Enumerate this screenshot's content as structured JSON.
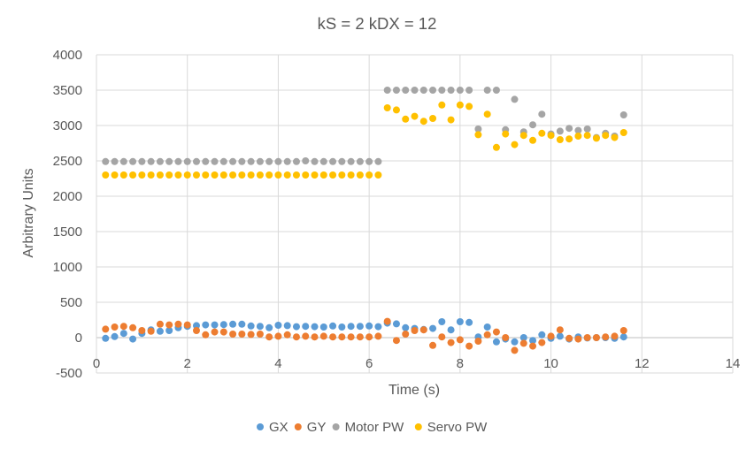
{
  "chart_data": {
    "type": "scatter",
    "title": "kS = 2 kDX = 12",
    "xlabel": "Time (s)",
    "ylabel": "Arbitrary Units",
    "xlim": [
      0,
      14
    ],
    "ylim": [
      -500,
      4000
    ],
    "x_ticks": [
      0,
      2,
      4,
      6,
      8,
      10,
      12,
      14
    ],
    "y_ticks": [
      -500,
      0,
      500,
      1000,
      1500,
      2000,
      2500,
      3000,
      3500,
      4000
    ],
    "x_tick_labels": [
      "0",
      "2",
      "4",
      "6",
      "8",
      "10",
      "12",
      "14"
    ],
    "y_tick_labels": [
      "-500",
      "0",
      "500",
      "1000",
      "1500",
      "2000",
      "2500",
      "3000",
      "3500",
      "4000"
    ],
    "grid": true,
    "legend_position": "bottom",
    "series": [
      {
        "name": "GX",
        "color": "#5b9bd5",
        "points": [
          [
            0.2,
            -10
          ],
          [
            0.4,
            15
          ],
          [
            0.6,
            60
          ],
          [
            0.8,
            -20
          ],
          [
            1.0,
            60
          ],
          [
            1.2,
            110
          ],
          [
            1.4,
            90
          ],
          [
            1.6,
            100
          ],
          [
            1.8,
            140
          ],
          [
            2.0,
            160
          ],
          [
            2.2,
            170
          ],
          [
            2.4,
            180
          ],
          [
            2.6,
            180
          ],
          [
            2.8,
            185
          ],
          [
            3.0,
            190
          ],
          [
            3.2,
            190
          ],
          [
            3.4,
            165
          ],
          [
            3.6,
            160
          ],
          [
            3.8,
            140
          ],
          [
            4.0,
            175
          ],
          [
            4.2,
            170
          ],
          [
            4.4,
            155
          ],
          [
            4.6,
            160
          ],
          [
            4.8,
            155
          ],
          [
            5.0,
            150
          ],
          [
            5.2,
            165
          ],
          [
            5.4,
            150
          ],
          [
            5.6,
            160
          ],
          [
            5.8,
            160
          ],
          [
            6.0,
            165
          ],
          [
            6.2,
            155
          ],
          [
            6.4,
            205
          ],
          [
            6.6,
            195
          ],
          [
            6.8,
            140
          ],
          [
            7.0,
            130
          ],
          [
            7.2,
            115
          ],
          [
            7.4,
            130
          ],
          [
            7.6,
            225
          ],
          [
            7.8,
            110
          ],
          [
            8.0,
            225
          ],
          [
            8.2,
            215
          ],
          [
            8.4,
            10
          ],
          [
            8.6,
            150
          ],
          [
            8.8,
            -60
          ],
          [
            9.0,
            -20
          ],
          [
            9.2,
            -60
          ],
          [
            9.4,
            0
          ],
          [
            9.6,
            -40
          ],
          [
            9.8,
            40
          ],
          [
            10.0,
            -10
          ],
          [
            10.2,
            20
          ],
          [
            10.4,
            -20
          ],
          [
            10.6,
            10
          ],
          [
            10.8,
            -5
          ],
          [
            11.0,
            0
          ],
          [
            11.2,
            0
          ],
          [
            11.4,
            -10
          ],
          [
            11.6,
            10
          ]
        ]
      },
      {
        "name": "GY",
        "color": "#ed7d31",
        "points": [
          [
            0.2,
            120
          ],
          [
            0.4,
            150
          ],
          [
            0.6,
            160
          ],
          [
            0.8,
            140
          ],
          [
            1.0,
            100
          ],
          [
            1.2,
            90
          ],
          [
            1.4,
            190
          ],
          [
            1.6,
            180
          ],
          [
            1.8,
            190
          ],
          [
            2.0,
            180
          ],
          [
            2.2,
            100
          ],
          [
            2.4,
            40
          ],
          [
            2.6,
            80
          ],
          [
            2.8,
            80
          ],
          [
            3.0,
            50
          ],
          [
            3.2,
            50
          ],
          [
            3.4,
            45
          ],
          [
            3.6,
            50
          ],
          [
            3.8,
            10
          ],
          [
            4.0,
            20
          ],
          [
            4.2,
            40
          ],
          [
            4.4,
            10
          ],
          [
            4.6,
            20
          ],
          [
            4.8,
            10
          ],
          [
            5.0,
            20
          ],
          [
            5.2,
            10
          ],
          [
            5.4,
            10
          ],
          [
            5.6,
            10
          ],
          [
            5.8,
            10
          ],
          [
            6.0,
            10
          ],
          [
            6.2,
            20
          ],
          [
            6.4,
            230
          ],
          [
            6.6,
            -40
          ],
          [
            6.8,
            50
          ],
          [
            7.0,
            100
          ],
          [
            7.2,
            110
          ],
          [
            7.4,
            -110
          ],
          [
            7.6,
            10
          ],
          [
            7.8,
            -70
          ],
          [
            8.0,
            -30
          ],
          [
            8.2,
            -120
          ],
          [
            8.4,
            -50
          ],
          [
            8.6,
            40
          ],
          [
            8.8,
            80
          ],
          [
            9.0,
            0
          ],
          [
            9.2,
            -180
          ],
          [
            9.4,
            -80
          ],
          [
            9.6,
            -120
          ],
          [
            9.8,
            -70
          ],
          [
            10.0,
            20
          ],
          [
            10.2,
            110
          ],
          [
            10.4,
            -10
          ],
          [
            10.6,
            -20
          ],
          [
            10.8,
            0
          ],
          [
            11.0,
            0
          ],
          [
            11.2,
            10
          ],
          [
            11.4,
            20
          ],
          [
            11.6,
            100
          ]
        ]
      },
      {
        "name": "Motor PW",
        "color": "#a5a5a5",
        "points": [
          [
            0.2,
            2490
          ],
          [
            0.4,
            2490
          ],
          [
            0.6,
            2490
          ],
          [
            0.8,
            2490
          ],
          [
            1.0,
            2490
          ],
          [
            1.2,
            2490
          ],
          [
            1.4,
            2490
          ],
          [
            1.6,
            2490
          ],
          [
            1.8,
            2490
          ],
          [
            2.0,
            2490
          ],
          [
            2.2,
            2490
          ],
          [
            2.4,
            2490
          ],
          [
            2.6,
            2490
          ],
          [
            2.8,
            2490
          ],
          [
            3.0,
            2490
          ],
          [
            3.2,
            2490
          ],
          [
            3.4,
            2490
          ],
          [
            3.6,
            2490
          ],
          [
            3.8,
            2490
          ],
          [
            4.0,
            2490
          ],
          [
            4.2,
            2490
          ],
          [
            4.4,
            2490
          ],
          [
            4.6,
            2500
          ],
          [
            4.8,
            2490
          ],
          [
            5.0,
            2490
          ],
          [
            5.2,
            2490
          ],
          [
            5.4,
            2490
          ],
          [
            5.6,
            2490
          ],
          [
            5.8,
            2490
          ],
          [
            6.0,
            2490
          ],
          [
            6.2,
            2490
          ],
          [
            6.4,
            3500
          ],
          [
            6.6,
            3500
          ],
          [
            6.8,
            3500
          ],
          [
            7.0,
            3500
          ],
          [
            7.2,
            3500
          ],
          [
            7.4,
            3500
          ],
          [
            7.6,
            3500
          ],
          [
            7.8,
            3500
          ],
          [
            8.0,
            3500
          ],
          [
            8.2,
            3500
          ],
          [
            8.4,
            2950
          ],
          [
            8.6,
            3500
          ],
          [
            8.8,
            3500
          ],
          [
            9.0,
            2940
          ],
          [
            9.2,
            3370
          ],
          [
            9.4,
            2910
          ],
          [
            9.6,
            3010
          ],
          [
            9.8,
            3160
          ],
          [
            10.0,
            2880
          ],
          [
            10.2,
            2920
          ],
          [
            10.4,
            2960
          ],
          [
            10.6,
            2930
          ],
          [
            10.8,
            2950
          ],
          [
            11.0,
            2830
          ],
          [
            11.2,
            2890
          ],
          [
            11.4,
            2850
          ],
          [
            11.6,
            3150
          ]
        ]
      },
      {
        "name": "Servo PW",
        "color": "#ffc000",
        "points": [
          [
            0.2,
            2300
          ],
          [
            0.4,
            2300
          ],
          [
            0.6,
            2300
          ],
          [
            0.8,
            2300
          ],
          [
            1.0,
            2300
          ],
          [
            1.2,
            2300
          ],
          [
            1.4,
            2300
          ],
          [
            1.6,
            2300
          ],
          [
            1.8,
            2300
          ],
          [
            2.0,
            2300
          ],
          [
            2.2,
            2300
          ],
          [
            2.4,
            2300
          ],
          [
            2.6,
            2300
          ],
          [
            2.8,
            2300
          ],
          [
            3.0,
            2300
          ],
          [
            3.2,
            2300
          ],
          [
            3.4,
            2300
          ],
          [
            3.6,
            2300
          ],
          [
            3.8,
            2300
          ],
          [
            4.0,
            2300
          ],
          [
            4.2,
            2300
          ],
          [
            4.4,
            2300
          ],
          [
            4.6,
            2300
          ],
          [
            4.8,
            2300
          ],
          [
            5.0,
            2300
          ],
          [
            5.2,
            2300
          ],
          [
            5.4,
            2300
          ],
          [
            5.6,
            2300
          ],
          [
            5.8,
            2300
          ],
          [
            6.0,
            2300
          ],
          [
            6.2,
            2300
          ],
          [
            6.4,
            3250
          ],
          [
            6.6,
            3220
          ],
          [
            6.8,
            3090
          ],
          [
            7.0,
            3130
          ],
          [
            7.2,
            3060
          ],
          [
            7.4,
            3100
          ],
          [
            7.6,
            3290
          ],
          [
            7.8,
            3080
          ],
          [
            8.0,
            3290
          ],
          [
            8.2,
            3270
          ],
          [
            8.4,
            2870
          ],
          [
            8.6,
            3160
          ],
          [
            8.8,
            2690
          ],
          [
            9.0,
            2880
          ],
          [
            9.2,
            2730
          ],
          [
            9.4,
            2860
          ],
          [
            9.6,
            2790
          ],
          [
            9.8,
            2890
          ],
          [
            10.0,
            2860
          ],
          [
            10.2,
            2800
          ],
          [
            10.4,
            2810
          ],
          [
            10.6,
            2850
          ],
          [
            10.8,
            2860
          ],
          [
            11.0,
            2820
          ],
          [
            11.2,
            2860
          ],
          [
            11.4,
            2830
          ],
          [
            11.6,
            2900
          ]
        ]
      }
    ]
  }
}
